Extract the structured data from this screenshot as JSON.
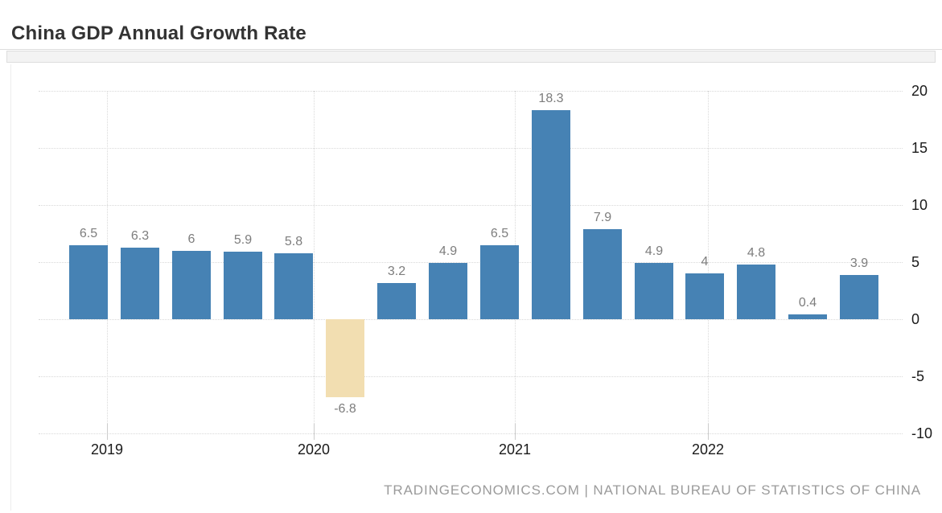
{
  "header": {
    "title": "China GDP Annual Growth Rate"
  },
  "footer": {
    "attribution": "TRADINGECONOMICS.COM | NATIONAL BUREAU OF STATISTICS OF CHINA"
  },
  "colors": {
    "bar_positive": "#4682b4",
    "bar_negative": "#f2deb1",
    "grid": "#d9d9d9",
    "tick_mark": "#cccccc",
    "value_label": "#7d7d7d",
    "axis_label": "#1a1a1a",
    "title": "#333333",
    "footer_text": "#9b9b9b",
    "header_border": "#dddddd",
    "strip_bg": "#f3f3f3",
    "strip_border": "#dddddd"
  },
  "chart_data": {
    "type": "bar",
    "title": "China GDP Annual Growth Rate",
    "values": [
      6.5,
      6.3,
      6,
      5.9,
      5.8,
      -6.8,
      3.2,
      4.9,
      6.5,
      18.3,
      7.9,
      4.9,
      4,
      4.8,
      0.4,
      3.9
    ],
    "value_labels": [
      "6.5",
      "6.3",
      "6",
      "5.9",
      "5.8",
      "-6.8",
      "3.2",
      "4.9",
      "6.5",
      "18.3",
      "7.9",
      "4.9",
      "4",
      "4.8",
      "0.4",
      "3.9"
    ],
    "x_tick_labels": [
      "2019",
      "2020",
      "2021",
      "2022"
    ],
    "y_ticks": [
      20,
      15,
      10,
      5,
      0,
      -5,
      -10
    ],
    "ylim": [
      -10,
      20
    ],
    "grid": "dotted",
    "y_axis_position": "right",
    "negative_bar_style": "beige",
    "positive_bar_style": "steel-blue"
  }
}
